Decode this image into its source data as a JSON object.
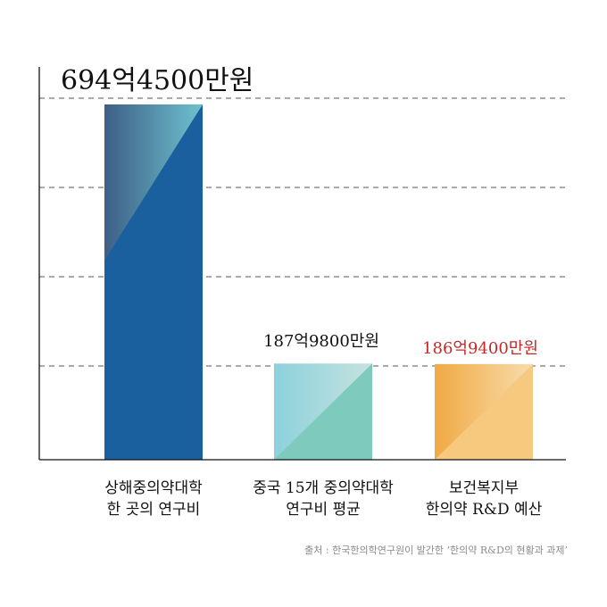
{
  "chart_data": {
    "type": "bar",
    "title": "",
    "xlabel": "",
    "ylabel": "",
    "grid": true,
    "ylim": [
      0,
      800
    ],
    "categories": [
      [
        "상해중의약대학",
        "한 곳의 연구비"
      ],
      [
        "중국 15개 중의약대학",
        "연구비 평균"
      ],
      [
        "보건복지부",
        "한의약 R&D 예산"
      ]
    ],
    "values": [
      694.45,
      187.98,
      186.94
    ],
    "data_labels": [
      "694억4500만원",
      "187억9800만원",
      "186억9400만원"
    ],
    "colors": {
      "bar1": [
        "#3e5f86",
        "#6dc2cf",
        "#1a5f9e"
      ],
      "bar2": [
        "#8cd1dc",
        "#c6e2df",
        "#7ecbbd"
      ],
      "bar3": [
        "#f0aa44",
        "#f8dcac",
        "#f6c97f"
      ],
      "label_highlight": "#c62828"
    }
  },
  "source_text": "출처 : 한국한의학연구원이 발간한  ‘한의약 R&D의 현황과 과제’"
}
